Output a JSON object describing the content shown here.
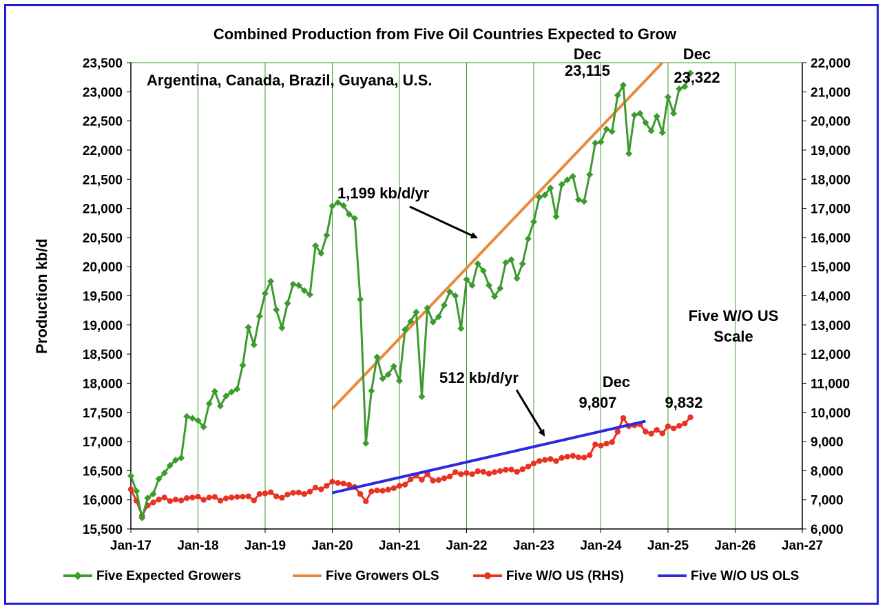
{
  "chart_data": {
    "type": "line",
    "title": "Combined Production from Five Oil Countries Expected to Grow",
    "subtitle": "Argentina, Canada, Brazil, Guyana, U.S.",
    "ylabel": "Production kb/d",
    "y_left": {
      "min": 15500,
      "max": 23500,
      "step": 500,
      "ticks": [
        "15,500",
        "16,000",
        "16,500",
        "17,000",
        "17,500",
        "18,000",
        "18,500",
        "19,000",
        "19,500",
        "20,000",
        "20,500",
        "21,000",
        "21,500",
        "22,000",
        "22,500",
        "23,000",
        "23,500"
      ]
    },
    "y_right": {
      "min": 6000,
      "max": 22000,
      "step": 1000,
      "ticks": [
        "6,000",
        "7,000",
        "8,000",
        "9,000",
        "10,000",
        "11,000",
        "12,000",
        "13,000",
        "14,000",
        "15,000",
        "16,000",
        "17,000",
        "18,000",
        "19,000",
        "20,000",
        "21,000",
        "22,000"
      ]
    },
    "x_ticks": [
      "Jan-17",
      "Jan-18",
      "Jan-19",
      "Jan-20",
      "Jan-21",
      "Jan-22",
      "Jan-23",
      "Jan-24",
      "Jan-25",
      "Jan-26",
      "Jan-27"
    ],
    "x_start": "2017-01",
    "grid": "vertical",
    "legend_position": "bottom",
    "legend": [
      "Five Expected Growers",
      "Five Growers OLS",
      "Five W/O US (RHS)",
      "Five W/O US OLS"
    ],
    "colors": {
      "growers": "#3d9a2e",
      "growers_ols": "#e8893a",
      "wo_us": "#e83222",
      "wo_us_ols": "#2a2ae0",
      "frame": "#1f1fd6"
    },
    "series": [
      {
        "name": "Five Expected Growers",
        "axis": "left",
        "values": [
          16410,
          16150,
          15690,
          16030,
          16100,
          16360,
          16460,
          16590,
          16680,
          16720,
          17430,
          17400,
          17360,
          17250,
          17650,
          17860,
          17610,
          17780,
          17850,
          17900,
          18310,
          18960,
          18660,
          19150,
          19540,
          19750,
          19260,
          18950,
          19370,
          19700,
          19680,
          19590,
          19520,
          20360,
          20230,
          20540,
          21040,
          21100,
          21050,
          20900,
          20830,
          19440,
          16970,
          17870,
          18450,
          18080,
          18150,
          18290,
          18040,
          18920,
          19060,
          19220,
          17770,
          19290,
          19050,
          19140,
          19340,
          19570,
          19500,
          18940,
          19780,
          19680,
          20050,
          19930,
          19680,
          19490,
          19630,
          20070,
          20120,
          19800,
          20050,
          20480,
          20770,
          21190,
          21230,
          21350,
          20860,
          21410,
          21490,
          21550,
          21150,
          21120,
          21580,
          22120,
          22140,
          22360,
          22320,
          22940,
          23115,
          21940,
          22600,
          22630,
          22470,
          22330,
          22580,
          22300,
          22910,
          22630,
          23050,
          23090,
          23322
        ]
      },
      {
        "name": "Five W/O US (RHS)",
        "axis": "right",
        "values": [
          7360,
          6970,
          6460,
          6810,
          6910,
          7010,
          7080,
          6960,
          7010,
          6980,
          7060,
          7080,
          7110,
          7000,
          7080,
          7100,
          6970,
          7050,
          7080,
          7100,
          7110,
          7120,
          6980,
          7200,
          7220,
          7260,
          7120,
          7070,
          7180,
          7240,
          7250,
          7200,
          7280,
          7420,
          7360,
          7480,
          7620,
          7580,
          7560,
          7510,
          7440,
          7200,
          6950,
          7290,
          7320,
          7310,
          7350,
          7400,
          7480,
          7520,
          7700,
          7830,
          7690,
          7880,
          7660,
          7680,
          7740,
          7800,
          7950,
          7880,
          7920,
          7880,
          7980,
          7960,
          7900,
          7950,
          7990,
          8030,
          8040,
          7960,
          8050,
          8140,
          8250,
          8330,
          8370,
          8400,
          8330,
          8440,
          8480,
          8510,
          8460,
          8450,
          8530,
          8900,
          8860,
          8930,
          8980,
          9340,
          9807,
          9530,
          9560,
          9590,
          9340,
          9270,
          9400,
          9280,
          9520,
          9450,
          9540,
          9620,
          9832
        ]
      }
    ],
    "trend_lines": [
      {
        "name": "Five Growers OLS",
        "axis": "left",
        "x_start_index": 36,
        "x_end_index": 95,
        "y_start": 17560,
        "y_end": 23500,
        "slope_label": "1,199 kb/d/yr"
      },
      {
        "name": "Five W/O US OLS",
        "axis": "right",
        "x_start_index": 36,
        "x_end_index": 92,
        "y_start": 7240,
        "y_end": 9700,
        "slope_label": "512 kb/d/yr"
      }
    ],
    "annotations": [
      {
        "id": "peak-growers-month",
        "text": "Dec"
      },
      {
        "id": "peak-growers-value",
        "text": "23,115"
      },
      {
        "id": "last-growers-month",
        "text": "Dec"
      },
      {
        "id": "last-growers-value",
        "text": "23,322"
      },
      {
        "id": "peak-wo-month",
        "text": "Dec"
      },
      {
        "id": "peak-wo-value",
        "text": "9,807"
      },
      {
        "id": "last-wo-value",
        "text": "9,832"
      },
      {
        "id": "rhs-note-1",
        "text": "Five W/O US"
      },
      {
        "id": "rhs-note-2",
        "text": "Scale"
      }
    ]
  }
}
